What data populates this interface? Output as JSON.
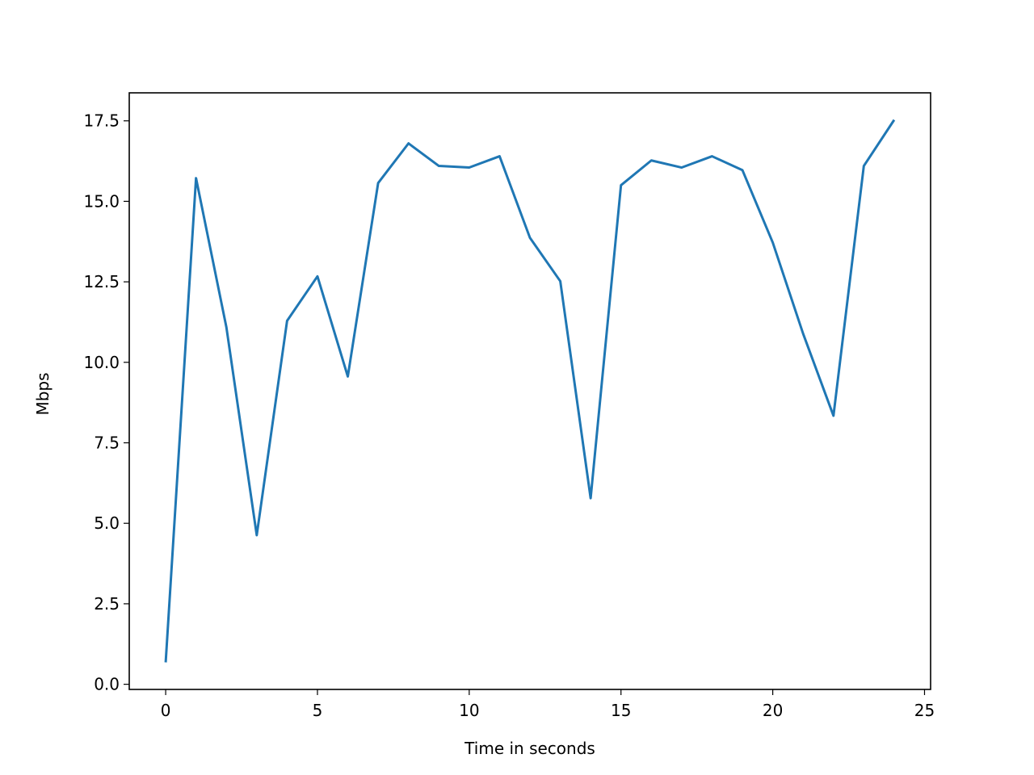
{
  "chart_data": {
    "type": "line",
    "x_label": "Time in seconds",
    "y_label": "Mbps",
    "x": [
      0,
      1,
      2,
      3,
      4,
      5,
      6,
      7,
      8,
      9,
      10,
      11,
      12,
      13,
      14,
      15,
      16,
      17,
      18,
      19,
      20,
      21,
      22,
      23,
      24
    ],
    "values": [
      0.68,
      15.72,
      11.09,
      4.63,
      11.29,
      12.67,
      9.56,
      15.57,
      16.8,
      16.1,
      16.05,
      16.4,
      13.87,
      12.52,
      5.78,
      15.5,
      16.27,
      16.05,
      16.4,
      15.97,
      13.72,
      10.89,
      8.34,
      16.1,
      17.53
    ],
    "color": "#1f77b4",
    "xlim": [
      -1.2,
      25.2
    ],
    "xticks": [
      0,
      5,
      10,
      15,
      20,
      25
    ],
    "ylim": [
      -0.16,
      18.37
    ],
    "yticks": [
      {
        "value": 0,
        "label": "0.0"
      },
      2.5,
      {
        "value": 5,
        "label": "5.0"
      },
      7.5,
      {
        "value": 10,
        "label": "10.0"
      },
      12.5,
      {
        "value": 15,
        "label": "15.0"
      },
      17.5
    ],
    "grid": false
  }
}
